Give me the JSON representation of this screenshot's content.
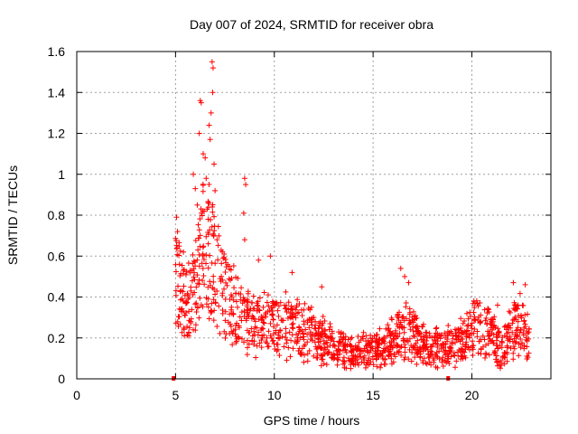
{
  "chart_data": {
    "type": "scatter",
    "title": "Day 007 of 2024, SRMTID for receiver obra",
    "xlabel": "GPS time / hours",
    "ylabel": "SRMTID / TECUs",
    "xlim": [
      0,
      24
    ],
    "ylim": [
      0,
      1.6
    ],
    "xticks": [
      0,
      5,
      10,
      15,
      20
    ],
    "xtick_labels": [
      "0",
      "5",
      "10",
      "15",
      "20"
    ],
    "yticks": [
      0,
      0.2,
      0.4,
      0.6,
      0.8,
      1,
      1.2,
      1.4,
      1.6
    ],
    "ytick_labels": [
      "0",
      "0.2",
      "0.4",
      "0.6",
      "0.8",
      "1",
      "1.2",
      "1.4",
      "1.6"
    ],
    "grid": true,
    "marker": "+",
    "color": "#ff0000",
    "data_start_hour": 5.0,
    "data_end_hour": 22.9,
    "zero_markers": [
      {
        "x": 4.9,
        "y": 0
      },
      {
        "x": 18.8,
        "y": 0
      }
    ],
    "envelope": [
      {
        "x": 5.0,
        "y": 0.55
      },
      {
        "x": 5.5,
        "y": 0.42
      },
      {
        "x": 6.0,
        "y": 0.5
      },
      {
        "x": 6.5,
        "y": 0.75
      },
      {
        "x": 7.0,
        "y": 0.6
      },
      {
        "x": 7.5,
        "y": 0.45
      },
      {
        "x": 8.0,
        "y": 0.38
      },
      {
        "x": 8.5,
        "y": 0.32
      },
      {
        "x": 9.0,
        "y": 0.28
      },
      {
        "x": 10.0,
        "y": 0.3
      },
      {
        "x": 11.0,
        "y": 0.28
      },
      {
        "x": 12.0,
        "y": 0.24
      },
      {
        "x": 13.0,
        "y": 0.18
      },
      {
        "x": 14.0,
        "y": 0.14
      },
      {
        "x": 15.0,
        "y": 0.15
      },
      {
        "x": 16.0,
        "y": 0.2
      },
      {
        "x": 16.7,
        "y": 0.28
      },
      {
        "x": 17.5,
        "y": 0.18
      },
      {
        "x": 18.5,
        "y": 0.17
      },
      {
        "x": 19.5,
        "y": 0.2
      },
      {
        "x": 20.3,
        "y": 0.27
      },
      {
        "x": 21.0,
        "y": 0.24
      },
      {
        "x": 21.5,
        "y": 0.15
      },
      {
        "x": 22.0,
        "y": 0.25
      },
      {
        "x": 22.5,
        "y": 0.3
      },
      {
        "x": 22.9,
        "y": 0.2
      }
    ],
    "peaks": [
      {
        "x": 5.05,
        "y": 0.79
      },
      {
        "x": 5.1,
        "y": 0.72
      },
      {
        "x": 5.4,
        "y": 0.62
      },
      {
        "x": 5.9,
        "y": 1.0
      },
      {
        "x": 6.0,
        "y": 0.93
      },
      {
        "x": 6.1,
        "y": 0.85
      },
      {
        "x": 6.25,
        "y": 1.36
      },
      {
        "x": 6.3,
        "y": 1.35
      },
      {
        "x": 6.2,
        "y": 1.2
      },
      {
        "x": 6.4,
        "y": 1.1
      },
      {
        "x": 6.5,
        "y": 1.08
      },
      {
        "x": 6.55,
        "y": 0.98
      },
      {
        "x": 6.7,
        "y": 1.24
      },
      {
        "x": 6.75,
        "y": 1.17
      },
      {
        "x": 6.8,
        "y": 1.3
      },
      {
        "x": 6.85,
        "y": 1.55
      },
      {
        "x": 6.9,
        "y": 1.52
      },
      {
        "x": 6.88,
        "y": 1.4
      },
      {
        "x": 6.95,
        "y": 1.05
      },
      {
        "x": 7.0,
        "y": 0.92
      },
      {
        "x": 6.6,
        "y": 0.83
      },
      {
        "x": 6.65,
        "y": 0.78
      },
      {
        "x": 7.1,
        "y": 0.68
      },
      {
        "x": 8.5,
        "y": 0.98
      },
      {
        "x": 8.55,
        "y": 0.95
      },
      {
        "x": 8.45,
        "y": 0.81
      },
      {
        "x": 8.5,
        "y": 0.68
      },
      {
        "x": 9.2,
        "y": 0.58
      },
      {
        "x": 9.8,
        "y": 0.6
      },
      {
        "x": 10.9,
        "y": 0.52
      },
      {
        "x": 12.4,
        "y": 0.45
      },
      {
        "x": 16.4,
        "y": 0.54
      },
      {
        "x": 16.6,
        "y": 0.5
      },
      {
        "x": 16.8,
        "y": 0.47
      },
      {
        "x": 20.1,
        "y": 0.38
      },
      {
        "x": 21.3,
        "y": 0.36
      },
      {
        "x": 22.1,
        "y": 0.47
      },
      {
        "x": 22.7,
        "y": 0.46
      }
    ]
  }
}
